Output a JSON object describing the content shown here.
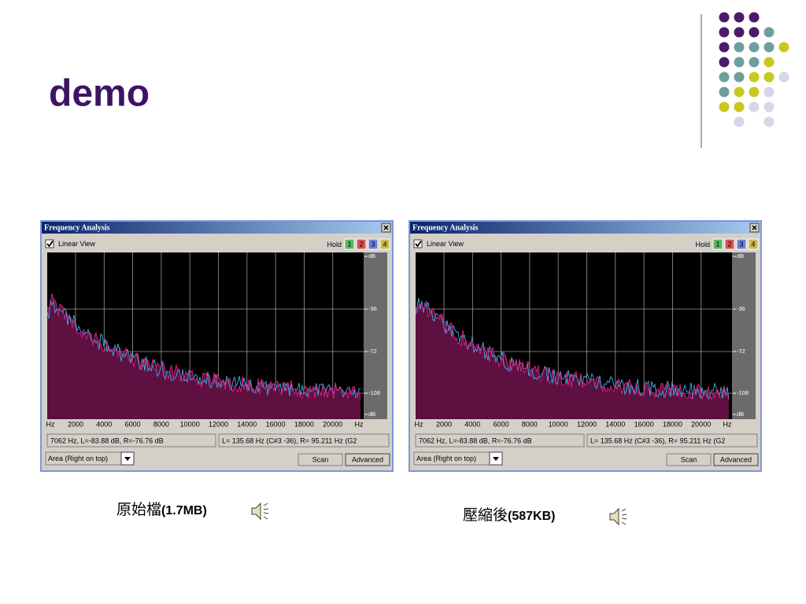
{
  "title": "demo",
  "panels": [
    {
      "window_title": "Frequency Analysis",
      "checkbox_label": "Linear View",
      "hold_label": "Hold",
      "hold_buttons": [
        "1",
        "2",
        "3",
        "4"
      ],
      "db_labels": [
        "dB",
        "-36",
        "-72",
        "-108",
        "dB"
      ],
      "freq_labels": [
        "Hz",
        "2000",
        "4000",
        "6000",
        "8000",
        "10000",
        "12000",
        "14000",
        "16000",
        "18000",
        "20000",
        "Hz"
      ],
      "cursor_readout": "7062 Hz, L=-83.88 dB, R=-76.76 dB",
      "peak_readout": "L= 135.68 Hz (C#3 -36), R= 95.211 Hz (G2",
      "display_mode": "Area (Right on top)",
      "scan_button": "Scan",
      "advanced_button": "Advanced",
      "caption": "原始檔",
      "caption_size": "(1.7MB)"
    },
    {
      "window_title": "Frequency Analysis",
      "checkbox_label": "Linear View",
      "hold_label": "Hold",
      "hold_buttons": [
        "1",
        "2",
        "3",
        "4"
      ],
      "db_labels": [
        "dB",
        "-36",
        "-72",
        "-108",
        "dB"
      ],
      "freq_labels": [
        "Hz",
        "2000",
        "4000",
        "6000",
        "8000",
        "10000",
        "12000",
        "14000",
        "16000",
        "18000",
        "20000",
        "Hz"
      ],
      "cursor_readout": "7062 Hz, L=-83.88 dB, R=-76.76 dB",
      "peak_readout": "L= 135.68 Hz (C#3 -36), R= 95.211 Hz (G2",
      "display_mode": "Area (Right on top)",
      "scan_button": "Scan",
      "advanced_button": "Advanced",
      "caption": "壓縮後",
      "caption_size": "(587KB)"
    }
  ]
}
